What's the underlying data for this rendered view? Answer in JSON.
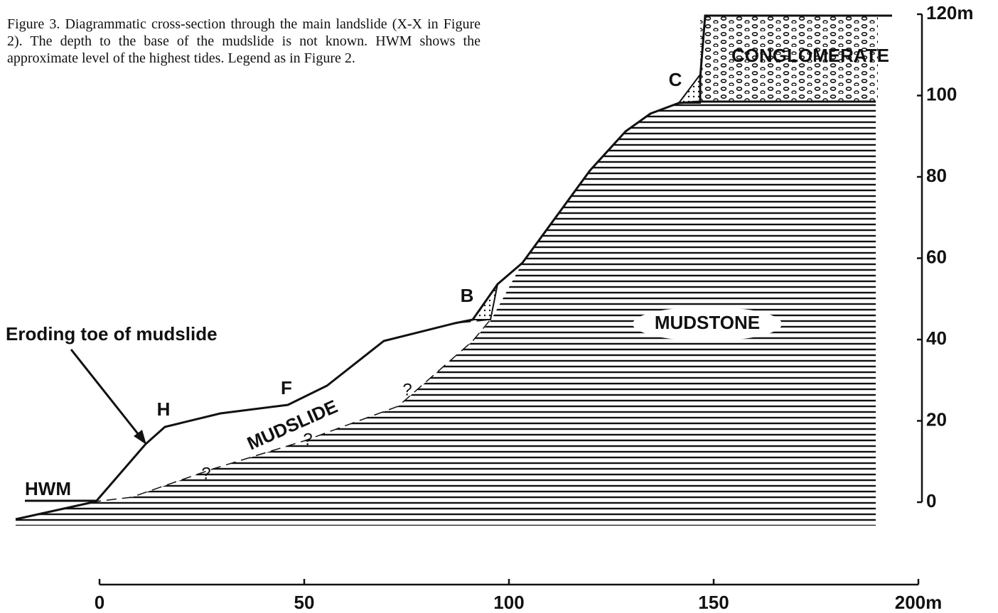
{
  "caption": "Figure 3. Diagrammatic cross-section through the main landslide (X-X in Figure 2). The depth to the base of the mudslide is not known. HWM shows the approximate level of the highest tides. Legend as in Figure 2.",
  "labels": {
    "conglomerate": "CONGLOMERATE",
    "mudstone": "MUDSTONE",
    "mudslide": "MUDSLIDE",
    "eroding_toe": "Eroding toe of mudslide",
    "hwm": "HWM",
    "points": [
      "C",
      "B",
      "F",
      "H"
    ],
    "question_marks": [
      "?",
      "?",
      "?"
    ]
  },
  "vertical_axis": {
    "ticks": [
      "0",
      "20",
      "40",
      "60",
      "80",
      "100",
      "120m"
    ]
  },
  "horizontal_axis": {
    "ticks": [
      "0",
      "50",
      "100",
      "150",
      "200m"
    ]
  }
}
